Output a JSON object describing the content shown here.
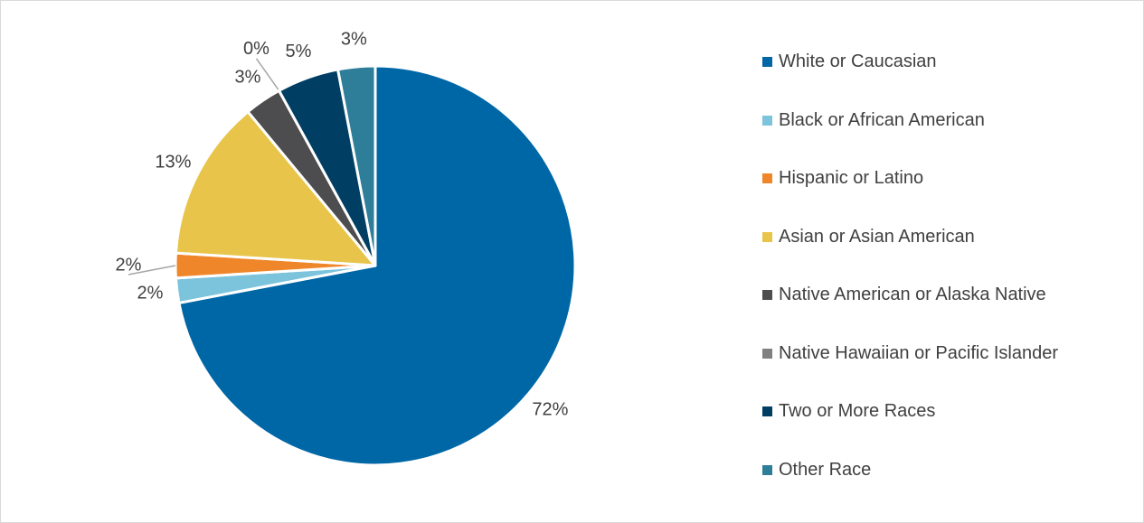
{
  "chart_data": {
    "type": "pie",
    "categories": [
      "White or Caucasian",
      "Black or African American",
      "Hispanic or Latino",
      "Asian or Asian American",
      "Native American or Alaska Native",
      "Native Hawaiian or Pacific Islander",
      "Two or More Races",
      "Other Race"
    ],
    "values": [
      72,
      2,
      2,
      13,
      3,
      0,
      5,
      3
    ],
    "value_labels": [
      "72%",
      "2%",
      "2%",
      "13%",
      "3%",
      "0%",
      "5%",
      "3%"
    ],
    "colors": [
      "#0067a6",
      "#7cc3dc",
      "#f0862a",
      "#e8c54a",
      "#4d4d4f",
      "#808080",
      "#003f63",
      "#2e7d99"
    ],
    "legend": "right"
  }
}
